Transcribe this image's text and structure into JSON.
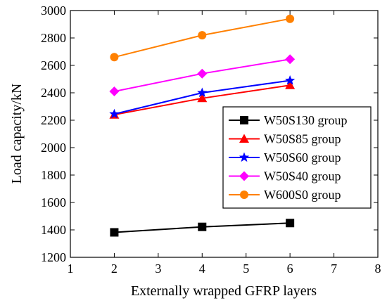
{
  "chart_data": {
    "type": "line",
    "xlabel": "Externally wrapped GFRP layers",
    "ylabel": "Load capacity/kN",
    "xlim": [
      1,
      8
    ],
    "ylim": [
      1200,
      3000
    ],
    "xticks": [
      1,
      2,
      3,
      4,
      5,
      6,
      7,
      8
    ],
    "yticks": [
      1200,
      1400,
      1600,
      1800,
      2000,
      2200,
      2400,
      2600,
      2800,
      3000
    ],
    "x": [
      2,
      4,
      6
    ],
    "legend_position": "right",
    "grid": false,
    "series": [
      {
        "name": "W50S130 group",
        "values": [
          1382,
          1422,
          1450
        ],
        "color": "#000000",
        "marker": "square"
      },
      {
        "name": "W50S85 group",
        "values": [
          2240,
          2360,
          2455
        ],
        "color": "#ff0000",
        "marker": "triangle"
      },
      {
        "name": "W50S60 group",
        "values": [
          2245,
          2400,
          2490
        ],
        "color": "#0000ff",
        "marker": "star"
      },
      {
        "name": "W50S40 group",
        "values": [
          2410,
          2540,
          2645
        ],
        "color": "#ff00ff",
        "marker": "diamond"
      },
      {
        "name": "W600S0 group",
        "values": [
          2660,
          2820,
          2940
        ],
        "color": "#ff8000",
        "marker": "circle"
      }
    ]
  }
}
